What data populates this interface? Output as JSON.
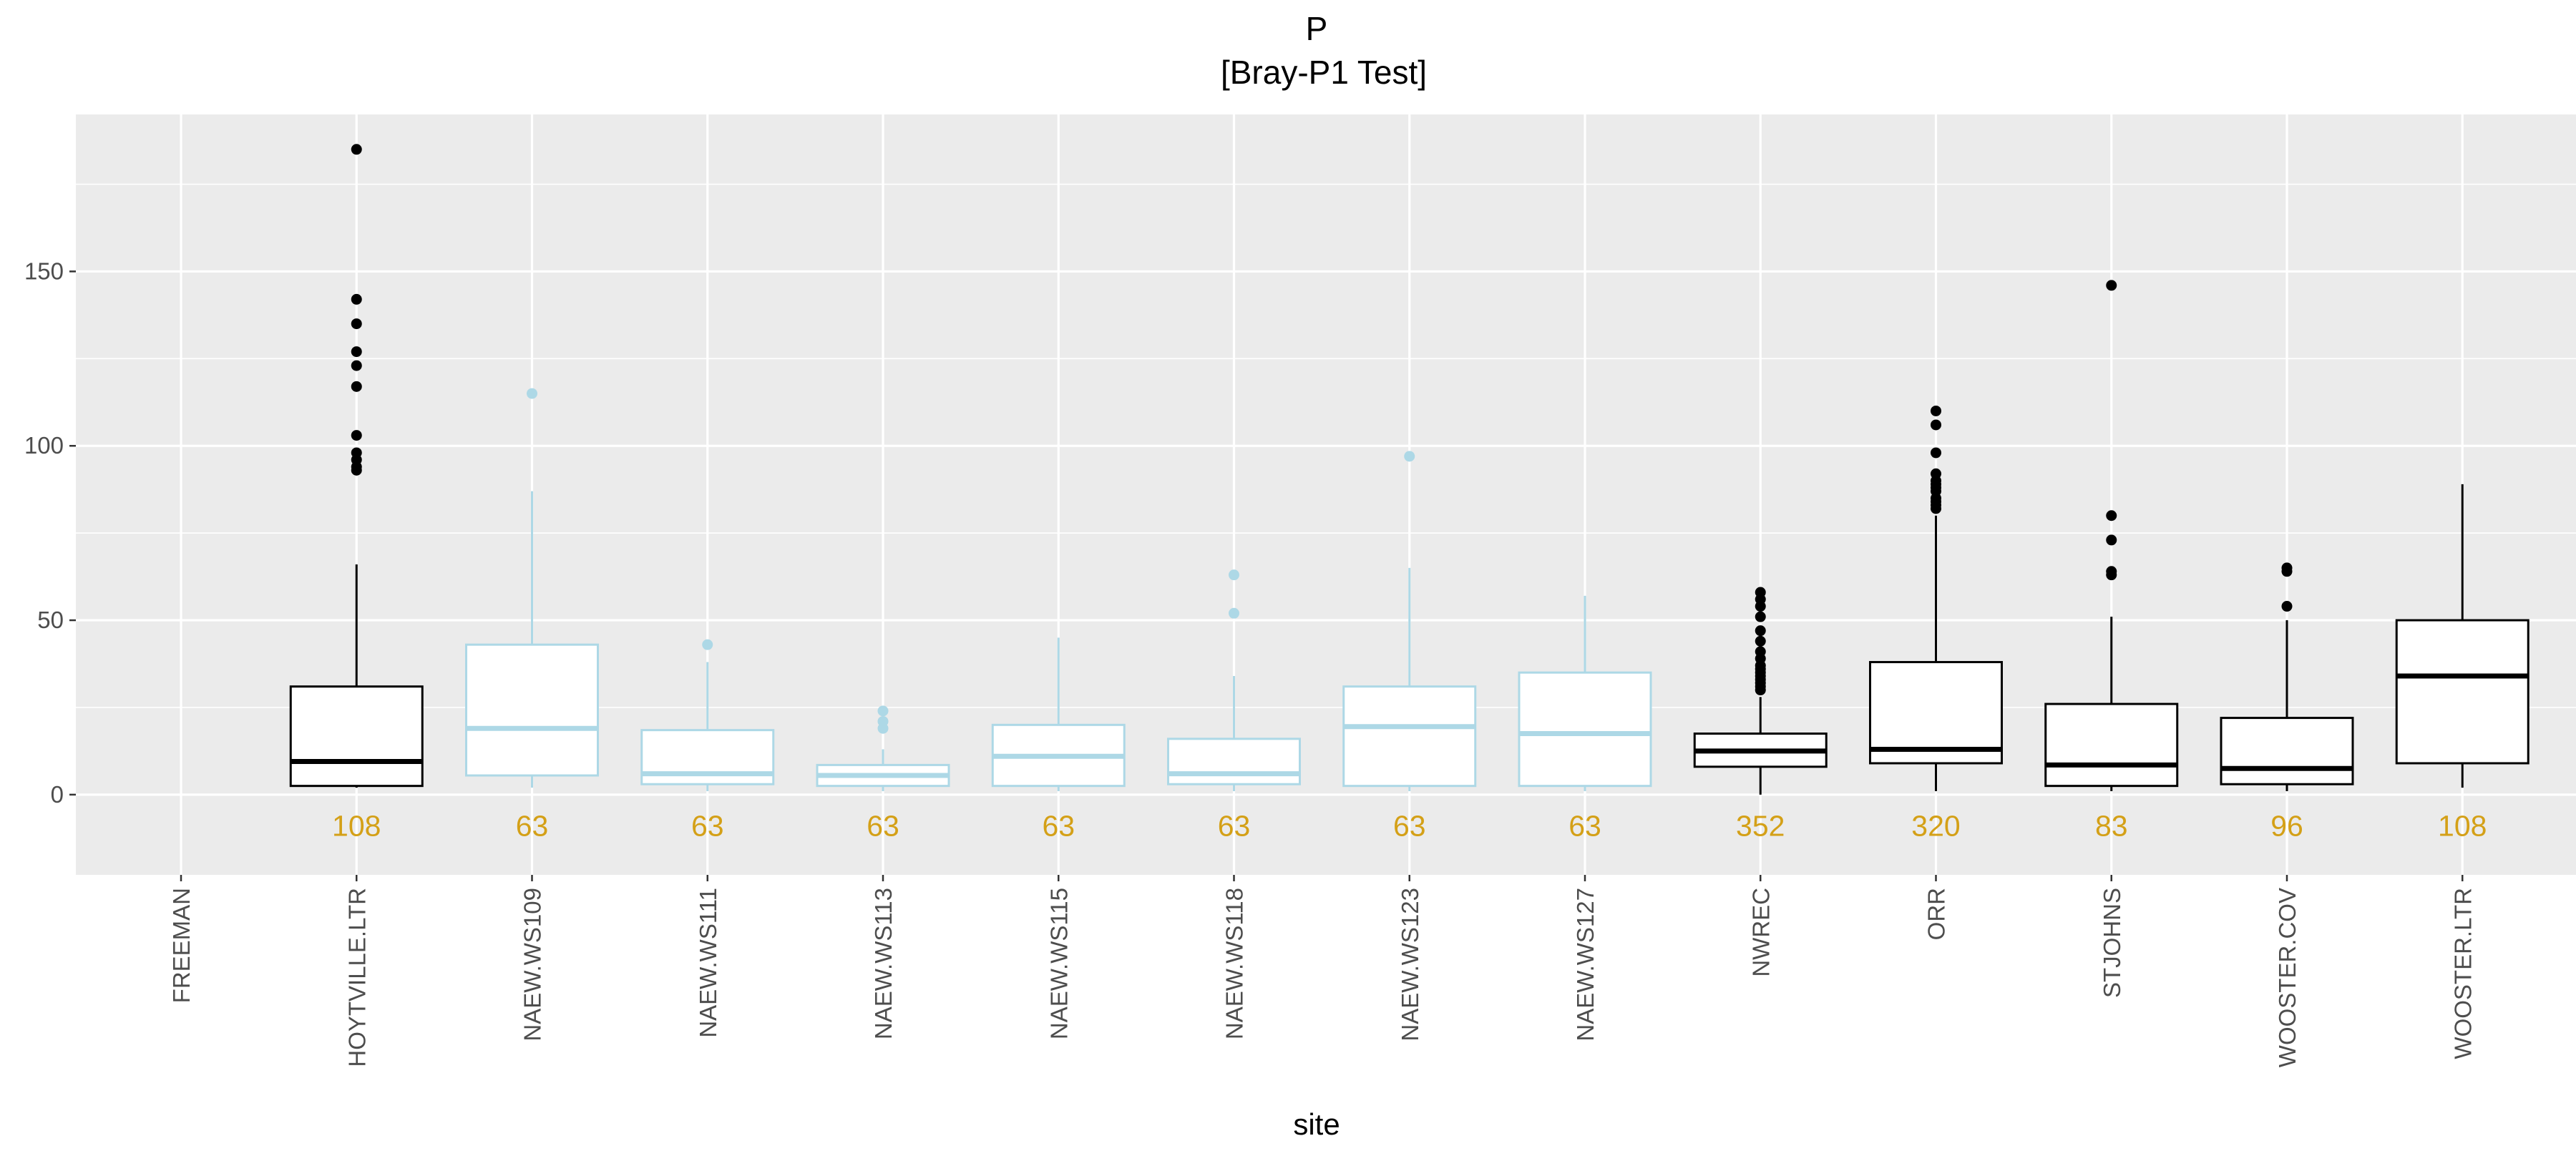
{
  "chart_data": {
    "type": "boxplot",
    "title": "P",
    "subtitle": "[Bray-P1 Test]",
    "xlabel": "site",
    "ylabel": "",
    "ylim": [
      -23,
      195
    ],
    "yticks": [
      0,
      50,
      100,
      150
    ],
    "grid": true,
    "colors": {
      "panel": "#ebebeb",
      "grid": "#ffffff",
      "tick_label": "#4d4d4d",
      "count_label": "#d4a017",
      "highlight": "#add8e6",
      "default": "#000000"
    },
    "categories": [
      "FREEMAN",
      "HOYTVILLE.LTR",
      "NAEW.WS109",
      "NAEW.WS111",
      "NAEW.WS113",
      "NAEW.WS115",
      "NAEW.WS118",
      "NAEW.WS123",
      "NAEW.WS127",
      "NWREC",
      "ORR",
      "STJOHNS",
      "WOOSTER.COV",
      "WOOSTER.LTR"
    ],
    "boxes": [
      {
        "site": "FREEMAN",
        "count": "",
        "color": "#000000"
      },
      {
        "site": "HOYTVILLE.LTR",
        "count": "108",
        "color": "#000000",
        "whisker_low": 2,
        "q1": 2.5,
        "median": 9.5,
        "q3": 31,
        "whisker_high": 66,
        "outliers": [
          185,
          142,
          135,
          127,
          123,
          117,
          103,
          98,
          96,
          94,
          93
        ]
      },
      {
        "site": "NAEW.WS109",
        "count": "63",
        "color": "#add8e6",
        "whisker_low": 2,
        "q1": 5.5,
        "median": 19,
        "q3": 43,
        "whisker_high": 87,
        "outliers": [
          115
        ]
      },
      {
        "site": "NAEW.WS111",
        "count": "63",
        "color": "#add8e6",
        "whisker_low": 1,
        "q1": 3,
        "median": 6,
        "q3": 18.5,
        "whisker_high": 38,
        "outliers": [
          43
        ]
      },
      {
        "site": "NAEW.WS113",
        "count": "63",
        "color": "#add8e6",
        "whisker_low": 1,
        "q1": 2.5,
        "median": 5.5,
        "q3": 8.5,
        "whisker_high": 13,
        "outliers": [
          24,
          21,
          19
        ]
      },
      {
        "site": "NAEW.WS115",
        "count": "63",
        "color": "#add8e6",
        "whisker_low": 1,
        "q1": 2.5,
        "median": 11,
        "q3": 20,
        "whisker_high": 45,
        "outliers": []
      },
      {
        "site": "NAEW.WS118",
        "count": "63",
        "color": "#add8e6",
        "whisker_low": 1,
        "q1": 3,
        "median": 6,
        "q3": 16,
        "whisker_high": 34,
        "outliers": [
          63,
          52
        ]
      },
      {
        "site": "NAEW.WS123",
        "count": "63",
        "color": "#add8e6",
        "whisker_low": 1,
        "q1": 2.5,
        "median": 19.5,
        "q3": 31,
        "whisker_high": 65,
        "outliers": [
          97
        ]
      },
      {
        "site": "NAEW.WS127",
        "count": "63",
        "color": "#add8e6",
        "whisker_low": 1,
        "q1": 2.5,
        "median": 17.5,
        "q3": 35,
        "whisker_high": 57,
        "outliers": []
      },
      {
        "site": "NWREC",
        "count": "352",
        "color": "#000000",
        "whisker_low": 0,
        "q1": 8,
        "median": 12.5,
        "q3": 17.5,
        "whisker_high": 28,
        "outliers": [
          58,
          56,
          54,
          51,
          47,
          44,
          41,
          39,
          37,
          36,
          35,
          34,
          33,
          32,
          31,
          30
        ]
      },
      {
        "site": "ORR",
        "count": "320",
        "color": "#000000",
        "whisker_low": 1,
        "q1": 9,
        "median": 13,
        "q3": 38,
        "whisker_high": 80,
        "outliers": [
          110,
          106,
          98,
          92,
          90,
          89,
          88,
          87,
          85,
          84,
          83,
          82
        ]
      },
      {
        "site": "STJOHNS",
        "count": "83",
        "color": "#000000",
        "whisker_low": 1,
        "q1": 2.5,
        "median": 8.5,
        "q3": 26,
        "whisker_high": 51,
        "outliers": [
          146,
          80,
          73,
          64,
          63
        ]
      },
      {
        "site": "WOOSTER.COV",
        "count": "96",
        "color": "#000000",
        "whisker_low": 1,
        "q1": 3,
        "median": 7.5,
        "q3": 22,
        "whisker_high": 50,
        "outliers": [
          65,
          64,
          54
        ]
      },
      {
        "site": "WOOSTER.LTR",
        "count": "108",
        "color": "#000000",
        "whisker_low": 2,
        "q1": 9,
        "median": 34,
        "q3": 50,
        "whisker_high": 89,
        "outliers": []
      }
    ]
  }
}
